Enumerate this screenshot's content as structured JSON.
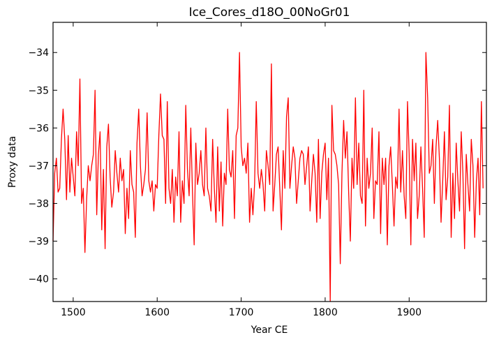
{
  "chart_data": {
    "type": "line",
    "title": "Ice_Cores_d18O_00NoGr01",
    "xlabel": "Year CE",
    "ylabel": "Proxy data",
    "xlim": [
      1476,
      1992
    ],
    "ylim": [
      -40.6,
      -33.2
    ],
    "xticks": [
      1500,
      1600,
      1700,
      1800,
      1900
    ],
    "xtick_labels": [
      "1500",
      "1600",
      "1700",
      "1800",
      "1900"
    ],
    "yticks": [
      -34,
      -35,
      -36,
      -37,
      -38,
      -39,
      -40
    ],
    "ytick_labels": [
      "−34",
      "−35",
      "−36",
      "−37",
      "−38",
      "−39",
      "−40"
    ],
    "grid": false,
    "series": [
      {
        "color": "#ff0000",
        "x_start": 1476,
        "x_step": 2,
        "values": [
          -39.0,
          -37.2,
          -36.8,
          -37.7,
          -37.6,
          -36.3,
          -35.5,
          -36.3,
          -37.9,
          -36.2,
          -37.7,
          -36.8,
          -37.3,
          -37.8,
          -36.1,
          -37.0,
          -34.7,
          -38.0,
          -37.6,
          -39.3,
          -37.9,
          -37.0,
          -37.4,
          -37.0,
          -36.7,
          -35.0,
          -38.3,
          -36.7,
          -36.1,
          -38.7,
          -37.1,
          -39.2,
          -36.5,
          -35.9,
          -37.3,
          -38.1,
          -37.7,
          -36.6,
          -37.2,
          -37.7,
          -36.8,
          -37.4,
          -37.1,
          -38.8,
          -37.6,
          -38.4,
          -36.6,
          -37.5,
          -37.7,
          -38.9,
          -36.4,
          -35.5,
          -37.0,
          -37.8,
          -37.5,
          -37.1,
          -35.6,
          -37.4,
          -37.7,
          -37.4,
          -38.2,
          -37.5,
          -37.6,
          -36.2,
          -35.1,
          -36.2,
          -36.3,
          -38.0,
          -35.3,
          -37.6,
          -38.0,
          -37.1,
          -38.5,
          -37.3,
          -37.8,
          -36.1,
          -38.5,
          -37.4,
          -38.0,
          -35.4,
          -37.1,
          -37.8,
          -36.0,
          -37.7,
          -39.1,
          -36.4,
          -37.5,
          -37.2,
          -36.6,
          -37.5,
          -37.8,
          -36.0,
          -37.6,
          -37.8,
          -38.2,
          -36.3,
          -37.6,
          -38.5,
          -36.5,
          -38.2,
          -36.9,
          -38.6,
          -37.2,
          -37.5,
          -35.5,
          -37.1,
          -37.3,
          -36.6,
          -38.4,
          -36.2,
          -36.0,
          -34.0,
          -36.5,
          -37.0,
          -36.8,
          -37.2,
          -36.4,
          -38.5,
          -37.6,
          -38.3,
          -37.5,
          -35.3,
          -37.2,
          -37.6,
          -37.1,
          -37.5,
          -38.2,
          -36.6,
          -37.0,
          -37.5,
          -34.3,
          -38.2,
          -37.5,
          -36.7,
          -36.5,
          -37.6,
          -38.7,
          -36.6,
          -37.6,
          -35.7,
          -35.2,
          -37.6,
          -37.0,
          -36.5,
          -36.8,
          -38.0,
          -37.4,
          -36.8,
          -36.6,
          -36.7,
          -37.5,
          -37.0,
          -36.5,
          -38.2,
          -37.4,
          -36.7,
          -37.2,
          -38.5,
          -36.3,
          -38.4,
          -37.2,
          -36.7,
          -36.4,
          -37.9,
          -36.8,
          -40.6,
          -35.4,
          -36.6,
          -36.7,
          -37.0,
          -37.5,
          -39.6,
          -37.2,
          -35.8,
          -36.8,
          -36.1,
          -37.7,
          -39.0,
          -36.8,
          -37.6,
          -35.2,
          -37.5,
          -36.4,
          -37.8,
          -38.0,
          -35.0,
          -38.6,
          -36.8,
          -37.6,
          -37.2,
          -36.0,
          -38.4,
          -37.4,
          -37.5,
          -36.1,
          -38.8,
          -36.8,
          -37.5,
          -36.8,
          -39.1,
          -37.0,
          -36.5,
          -37.5,
          -38.6,
          -37.3,
          -37.6,
          -35.5,
          -37.7,
          -36.6,
          -37.8,
          -38.4,
          -35.3,
          -36.7,
          -39.1,
          -36.3,
          -37.4,
          -36.4,
          -38.4,
          -37.8,
          -36.5,
          -37.6,
          -38.9,
          -34.0,
          -35.2,
          -37.2,
          -37.0,
          -36.3,
          -38.0,
          -36.5,
          -35.8,
          -36.8,
          -38.5,
          -37.4,
          -36.1,
          -37.9,
          -37.3,
          -35.4,
          -38.9,
          -37.2,
          -38.4,
          -36.4,
          -37.4,
          -38.2,
          -36.1,
          -37.2,
          -39.2,
          -36.7,
          -37.5,
          -38.2,
          -36.3,
          -37.0,
          -38.9,
          -37.4,
          -36.8,
          -38.3,
          -35.3,
          -37.6
        ]
      }
    ]
  }
}
